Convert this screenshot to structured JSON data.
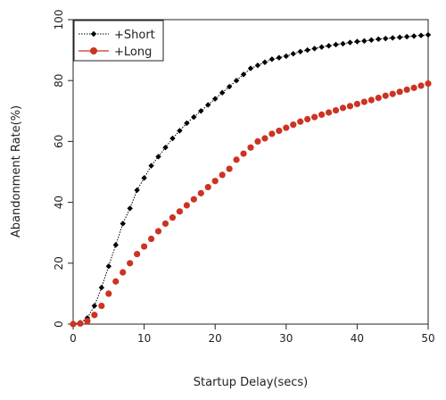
{
  "chart_data": {
    "type": "line",
    "xlabel": "Startup Delay(secs)",
    "ylabel": "Abandonment Rate(%)",
    "xlim": [
      0,
      50
    ],
    "ylim": [
      0,
      100
    ],
    "xticks": [
      0,
      10,
      20,
      30,
      40,
      50
    ],
    "yticks": [
      0,
      20,
      40,
      60,
      80,
      100
    ],
    "grid": false,
    "legend_position": "top-left",
    "series": [
      {
        "name": "+Short",
        "color": "#000000",
        "marker": "diamond",
        "line": "dotted",
        "x": [
          0,
          1,
          2,
          3,
          4,
          5,
          6,
          7,
          8,
          9,
          10,
          11,
          12,
          13,
          14,
          15,
          16,
          17,
          18,
          19,
          20,
          21,
          22,
          23,
          24,
          25,
          26,
          27,
          28,
          29,
          30,
          31,
          32,
          33,
          34,
          35,
          36,
          37,
          38,
          39,
          40,
          41,
          42,
          43,
          44,
          45,
          46,
          47,
          48,
          49,
          50
        ],
        "values": [
          0,
          0.5,
          2,
          6,
          12,
          19,
          26,
          33,
          38,
          44,
          48,
          52,
          55,
          58,
          61,
          63.5,
          66,
          68,
          70,
          72,
          74,
          76,
          78,
          80,
          82,
          84,
          85,
          86,
          87,
          87.5,
          88,
          88.8,
          89.5,
          90,
          90.5,
          91,
          91.4,
          91.8,
          92.1,
          92.5,
          92.8,
          93,
          93.3,
          93.6,
          93.8,
          94,
          94.2,
          94.4,
          94.6,
          94.8,
          95
        ]
      },
      {
        "name": "+Long",
        "color": "#cc3322",
        "marker": "circle",
        "line": "none",
        "x": [
          0,
          1,
          2,
          3,
          4,
          5,
          6,
          7,
          8,
          9,
          10,
          11,
          12,
          13,
          14,
          15,
          16,
          17,
          18,
          19,
          20,
          21,
          22,
          23,
          24,
          25,
          26,
          27,
          28,
          29,
          30,
          31,
          32,
          33,
          34,
          35,
          36,
          37,
          38,
          39,
          40,
          41,
          42,
          43,
          44,
          45,
          46,
          47,
          48,
          49,
          50
        ],
        "values": [
          0,
          0.2,
          1,
          3,
          6,
          10,
          14,
          17,
          20,
          23,
          25.5,
          28,
          30.5,
          33,
          35,
          37,
          39,
          41,
          43,
          45,
          47,
          49,
          51,
          54,
          56,
          58,
          60,
          61,
          62.5,
          63.5,
          64.5,
          65.5,
          66.5,
          67.3,
          68,
          68.8,
          69.5,
          70.2,
          71,
          71.6,
          72.3,
          73,
          73.6,
          74.3,
          75,
          75.6,
          76.3,
          77,
          77.6,
          78.3,
          79
        ]
      }
    ]
  }
}
